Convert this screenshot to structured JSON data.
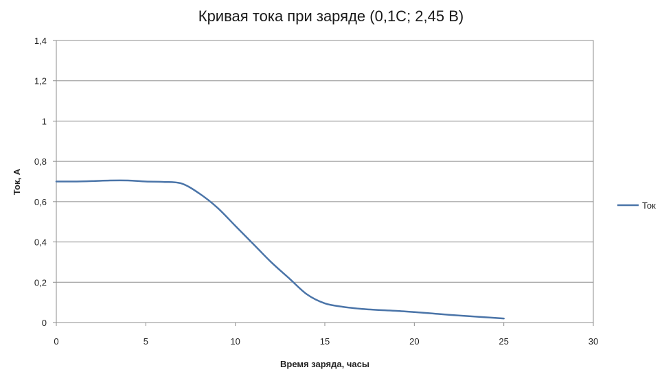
{
  "chart_data": {
    "type": "line",
    "title": "Кривая тока при заряде (0,1С; 2,45 В)",
    "xlabel": "Время заряда, часы",
    "ylabel": "Ток, А",
    "xlim": [
      0,
      30
    ],
    "ylim": [
      0,
      1.4
    ],
    "x_ticks": [
      0,
      5,
      10,
      15,
      20,
      25,
      30
    ],
    "y_ticks": [
      0,
      0.2,
      0.4,
      0.6,
      0.8,
      1,
      1.2,
      1.4
    ],
    "x_tick_labels": [
      "0",
      "5",
      "10",
      "15",
      "20",
      "25",
      "30"
    ],
    "y_tick_labels": [
      "0",
      "0,2",
      "0,4",
      "0,6",
      "0,8",
      "1",
      "1,2",
      "1,4"
    ],
    "grid": "horizontal",
    "legend_position": "right",
    "series": [
      {
        "name": "Ток",
        "color": "#4a74a8",
        "x": [
          0,
          1,
          2,
          3,
          4,
          5,
          6,
          7,
          8,
          9,
          10,
          11,
          12,
          13,
          14,
          15,
          16,
          17,
          18,
          19,
          20,
          21,
          22,
          23,
          24,
          25
        ],
        "y": [
          0.7,
          0.7,
          0.702,
          0.705,
          0.705,
          0.7,
          0.698,
          0.69,
          0.64,
          0.57,
          0.48,
          0.39,
          0.3,
          0.22,
          0.14,
          0.095,
          0.078,
          0.068,
          0.062,
          0.058,
          0.052,
          0.045,
          0.038,
          0.032,
          0.026,
          0.02
        ]
      }
    ]
  }
}
